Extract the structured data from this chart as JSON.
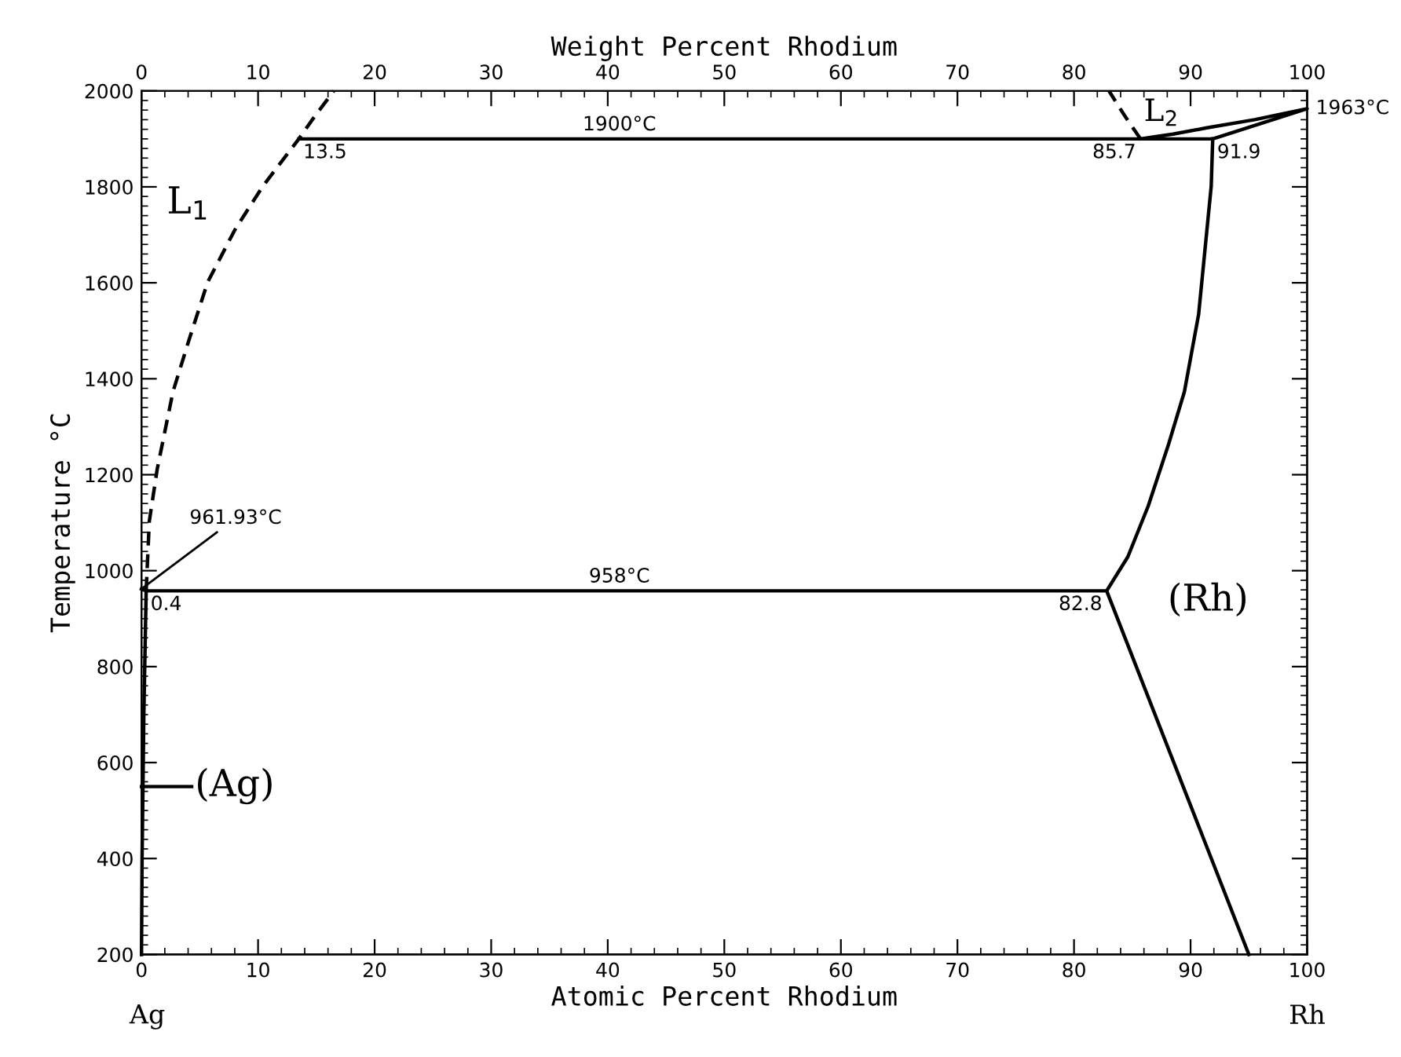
{
  "chart_data": {
    "type": "line",
    "xlabel": "Atomic Percent Rhodium",
    "x2label": "Weight Percent Rhodium",
    "ylabel": "Temperature °C",
    "xlim": [
      0,
      100
    ],
    "xticks": [
      0,
      10,
      20,
      30,
      40,
      50,
      60,
      70,
      80,
      90,
      100
    ],
    "x2lim": [
      0,
      100
    ],
    "x2ticks": [
      0,
      10,
      20,
      30,
      40,
      50,
      60,
      70,
      80,
      90,
      100
    ],
    "ylim": [
      200,
      2000
    ],
    "yticks": [
      200,
      400,
      600,
      800,
      1000,
      1200,
      1400,
      1600,
      1800,
      2000
    ],
    "grid": false,
    "legend": false,
    "marker": "none",
    "series": [
      {
        "color": "#000000",
        "line_style": "solid",
        "x": [
          13.5,
          91.9,
          100,
          95.5,
          91.4,
          88.5,
          85.7
        ],
        "values": [
          1900,
          1900,
          1963,
          1940,
          1923,
          1910,
          1900
        ]
      },
      {
        "color": "#000000",
        "line_style": "solid",
        "x": [
          0,
          0.4,
          82.8,
          95
        ],
        "values": [
          961.93,
          958,
          958,
          200
        ]
      },
      {
        "color": "#000000",
        "line_style": "dashed",
        "x": [
          0.4,
          0.67,
          1.35,
          2.7,
          4.05,
          5.67,
          8.0,
          10.4,
          13.5,
          14.8,
          16.5
        ],
        "values": [
          958,
          1103,
          1212,
          1373,
          1479,
          1601,
          1710,
          1801,
          1900,
          1945,
          2000
        ]
      },
      {
        "color": "#000000",
        "line_style": "solid",
        "x": [
          82.8,
          84.62,
          86.37,
          88.12,
          89.47,
          90.69,
          91.77,
          91.9
        ],
        "values": [
          958,
          1029,
          1135,
          1264,
          1373,
          1534,
          1801,
          1900
        ]
      },
      {
        "color": "#000000",
        "line_style": "dashed",
        "x": [
          85.7,
          84.3,
          83.0
        ],
        "values": [
          1900,
          1950,
          2000
        ]
      },
      {
        "color": "#000000",
        "line_style": "solid",
        "x": [
          0,
          4.3
        ],
        "values": [
          550,
          550
        ]
      },
      {
        "color": "#000000",
        "line_style": "solid",
        "x": [
          0.4,
          0.2,
          0.05,
          0
        ],
        "values": [
          958,
          700,
          400,
          200
        ]
      }
    ],
    "annotations": [
      {
        "text": "1900°C",
        "x": 41,
        "y": 1900
      },
      {
        "text": "13.5",
        "x": 13.5,
        "y": 1900
      },
      {
        "text": "85.7",
        "x": 85.7,
        "y": 1900
      },
      {
        "text": "91.9",
        "x": 91.9,
        "y": 1900
      },
      {
        "text": "1963°C",
        "x": 100,
        "y": 1963
      },
      {
        "text": "961.93°C",
        "x": 0,
        "y": 961.93
      },
      {
        "text": "958°C",
        "x": 41,
        "y": 958
      },
      {
        "text": "0.4",
        "x": 0.4,
        "y": 958
      },
      {
        "text": "82.8",
        "x": 82.8,
        "y": 958
      },
      "L$_{1}$",
      "L$_{2}$",
      "(Rh)",
      "(Ag)",
      "Ag",
      "Rh"
    ]
  }
}
